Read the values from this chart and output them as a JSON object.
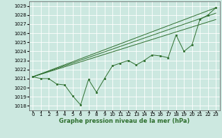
{
  "title": "Graphe pression niveau de la mer (hPa)",
  "bg_color": "#cce8e0",
  "grid_color": "#ffffff",
  "line_color": "#2d6e2d",
  "xlim": [
    -0.5,
    23.5
  ],
  "ylim": [
    1017.5,
    1029.5
  ],
  "yticks": [
    1018,
    1019,
    1020,
    1021,
    1022,
    1023,
    1024,
    1025,
    1026,
    1027,
    1028,
    1029
  ],
  "xticks": [
    0,
    1,
    2,
    3,
    4,
    5,
    6,
    7,
    8,
    9,
    10,
    11,
    12,
    13,
    14,
    15,
    16,
    17,
    18,
    19,
    20,
    21,
    22,
    23
  ],
  "series1": [
    1021.2,
    1021.0,
    1021.0,
    1020.4,
    1020.3,
    1019.1,
    1018.1,
    1020.9,
    1019.5,
    1021.0,
    1022.4,
    1022.7,
    1023.0,
    1022.5,
    1023.0,
    1023.6,
    1023.5,
    1023.3,
    1025.8,
    1024.0,
    1024.7,
    1027.5,
    1028.0,
    1028.8
  ],
  "series2_x": [
    0,
    23
  ],
  "series2_y": [
    1021.2,
    1028.8
  ],
  "series3_x": [
    0,
    23
  ],
  "series3_y": [
    1021.2,
    1027.5
  ],
  "series4_x": [
    0,
    23
  ],
  "series4_y": [
    1021.2,
    1028.2
  ],
  "tick_fontsize": 5.0,
  "xlabel_fontsize": 6.0
}
